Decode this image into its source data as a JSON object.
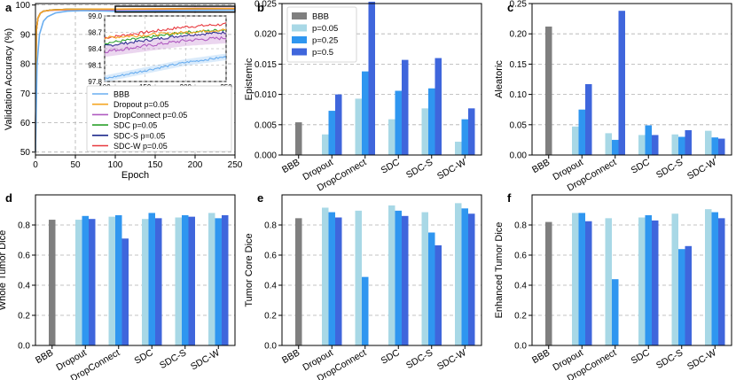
{
  "colors": {
    "BBB": "#7f7f7f",
    "p=0.05": "#a8d8e6",
    "p=0.25": "#2f96f0",
    "p=0.5": "#3f66dc",
    "line_BBB": "#6aaef0",
    "line_Dropout": "#f5a623",
    "line_DropConnect": "#b05bc0",
    "line_SDC": "#2ca02c",
    "line_SDC-S": "#1f2a8c",
    "line_SDC-W": "#e8383d"
  },
  "chart_data": [
    {
      "id": "a",
      "panel_letter": "a",
      "type": "line",
      "title": "",
      "xlabel": "Epoch",
      "ylabel": "Validation Accuracy (%)",
      "xlim": [
        0,
        250
      ],
      "ylim": [
        49,
        100.5
      ],
      "xticks": [
        "0",
        "50",
        "100",
        "150",
        "200",
        "250"
      ],
      "yticks": [
        "50",
        "60",
        "70",
        "80",
        "90",
        "100"
      ],
      "legend": [
        "BBB",
        "Dropout p=0.05",
        "DropConnect p=0.05",
        "SDC p=0.05",
        "SDC-S p=0.05",
        "SDC-W p=0.05"
      ],
      "legend_position": "lower-right",
      "series": [
        {
          "name": "BBB",
          "x": [
            0,
            2,
            5,
            10,
            15,
            25,
            40,
            60,
            100,
            150,
            200,
            250
          ],
          "y": [
            50,
            80,
            90,
            94.5,
            96,
            97.3,
            97.9,
            98.1,
            97.85,
            98.0,
            98.15,
            98.25
          ]
        },
        {
          "name": "Dropout p=0.05",
          "x": [
            0,
            1,
            3,
            6,
            10,
            20,
            40,
            100,
            150,
            200,
            250
          ],
          "y": [
            50,
            91,
            95.5,
            97.2,
            97.9,
            98.3,
            98.5,
            98.6,
            98.65,
            98.7,
            98.75
          ]
        },
        {
          "name": "DropConnect p=0.05",
          "x": [
            0,
            1,
            3,
            6,
            10,
            20,
            40,
            100,
            150,
            200,
            250
          ],
          "y": [
            50,
            91,
            95.5,
            97.2,
            97.9,
            98.2,
            98.35,
            98.35,
            98.45,
            98.55,
            98.6
          ]
        },
        {
          "name": "SDC p=0.05",
          "x": [
            0,
            1,
            3,
            6,
            10,
            20,
            40,
            100,
            150,
            200,
            250
          ],
          "y": [
            50,
            91,
            95.5,
            97.2,
            97.9,
            98.3,
            98.5,
            98.5,
            98.6,
            98.7,
            98.75
          ]
        },
        {
          "name": "SDC-S p=0.05",
          "x": [
            0,
            1,
            3,
            6,
            10,
            20,
            40,
            100,
            150,
            200,
            250
          ],
          "y": [
            50,
            91,
            95.5,
            97.2,
            97.9,
            98.3,
            98.5,
            98.45,
            98.55,
            98.65,
            98.7
          ]
        },
        {
          "name": "SDC-W p=0.05",
          "x": [
            0,
            1,
            3,
            6,
            10,
            20,
            40,
            100,
            150,
            200,
            250
          ],
          "y": [
            50,
            91,
            95.5,
            97.2,
            97.9,
            98.3,
            98.55,
            98.6,
            98.7,
            98.8,
            98.85
          ]
        }
      ],
      "inset": {
        "xlim": [
          100,
          250
        ],
        "ylim": [
          97.8,
          99.0
        ],
        "xticks": [
          "100",
          "150",
          "200",
          "250"
        ],
        "yticks": [
          "97.8",
          "98.1",
          "98.4",
          "98.7",
          "99.0"
        ],
        "highlight_x": [
          100,
          250
        ],
        "highlight_y": [
          97.8,
          99.0
        ]
      }
    },
    {
      "id": "b",
      "panel_letter": "b",
      "type": "bar",
      "ylabel": "Epistemic",
      "ylim": [
        0,
        0.025
      ],
      "yticks": [
        "0.000",
        "0.005",
        "0.010",
        "0.015",
        "0.020",
        "0.025"
      ],
      "tick_step": 0.005,
      "categories": [
        "BBB",
        "Dropout",
        "DropConnect",
        "SDC",
        "SDC-S",
        "SDC-W"
      ],
      "legend": [
        "BBB",
        "p=0.05",
        "p=0.25",
        "p=0.5"
      ],
      "legend_position": "upper-left",
      "series": [
        {
          "name": "BBB",
          "values": [
            0.0054,
            null,
            null,
            null,
            null,
            null
          ]
        },
        {
          "name": "p=0.05",
          "values": [
            null,
            0.0034,
            0.0093,
            0.0059,
            0.0077,
            0.0022
          ]
        },
        {
          "name": "p=0.25",
          "values": [
            null,
            0.0073,
            0.0138,
            0.0106,
            0.011,
            0.0059
          ]
        },
        {
          "name": "p=0.5",
          "values": [
            null,
            0.01,
            0.0253,
            0.0157,
            0.016,
            0.0077
          ]
        }
      ]
    },
    {
      "id": "c",
      "panel_letter": "c",
      "type": "bar",
      "ylabel": "Aleatoric",
      "ylim": [
        0,
        0.25
      ],
      "yticks": [
        "0.00",
        "0.05",
        "0.10",
        "0.15",
        "0.20",
        "0.25"
      ],
      "tick_step": 0.05,
      "categories": [
        "BBB",
        "Dropout",
        "DropConnect",
        "SDC",
        "SDC-S",
        "SDC-W"
      ],
      "series": [
        {
          "name": "BBB",
          "values": [
            0.212,
            null,
            null,
            null,
            null,
            null
          ]
        },
        {
          "name": "p=0.05",
          "values": [
            null,
            0.047,
            0.036,
            0.033,
            0.034,
            0.04
          ]
        },
        {
          "name": "p=0.25",
          "values": [
            null,
            0.075,
            0.025,
            0.049,
            0.03,
            0.029
          ]
        },
        {
          "name": "p=0.5",
          "values": [
            null,
            0.117,
            0.238,
            0.033,
            0.041,
            0.027
          ]
        }
      ]
    },
    {
      "id": "d",
      "panel_letter": "d",
      "type": "bar",
      "ylabel": "Whole Tumor Dice",
      "ylim": [
        0,
        1.0
      ],
      "yticks": [
        "0.0",
        "0.2",
        "0.4",
        "0.6",
        "0.8"
      ],
      "tick_step": 0.2,
      "categories": [
        "BBB",
        "Dropout",
        "DropConnect",
        "SDC",
        "SDC-S",
        "SDC-W"
      ],
      "series": [
        {
          "name": "BBB",
          "values": [
            0.835,
            null,
            null,
            null,
            null,
            null
          ]
        },
        {
          "name": "p=0.05",
          "values": [
            null,
            0.835,
            0.855,
            0.84,
            0.85,
            0.88
          ]
        },
        {
          "name": "p=0.25",
          "values": [
            null,
            0.86,
            0.865,
            0.88,
            0.865,
            0.845
          ]
        },
        {
          "name": "p=0.5",
          "values": [
            null,
            0.84,
            0.71,
            0.845,
            0.855,
            0.865
          ]
        }
      ]
    },
    {
      "id": "e",
      "panel_letter": "e",
      "type": "bar",
      "ylabel": "Tumor Core Dice",
      "ylim": [
        0,
        1.0
      ],
      "yticks": [
        "0.0",
        "0.2",
        "0.4",
        "0.6",
        "0.8"
      ],
      "tick_step": 0.2,
      "categories": [
        "BBB",
        "Dropout",
        "DropConnect",
        "SDC",
        "SDC-S",
        "SDC-W"
      ],
      "series": [
        {
          "name": "BBB",
          "values": [
            0.845,
            null,
            null,
            null,
            null,
            null
          ]
        },
        {
          "name": "p=0.05",
          "values": [
            null,
            0.915,
            0.895,
            0.93,
            0.885,
            0.945
          ]
        },
        {
          "name": "p=0.25",
          "values": [
            null,
            0.885,
            0.455,
            0.895,
            0.75,
            0.91
          ]
        },
        {
          "name": "p=0.5",
          "values": [
            null,
            0.85,
            null,
            0.86,
            0.665,
            0.875
          ]
        }
      ]
    },
    {
      "id": "f",
      "panel_letter": "f",
      "type": "bar",
      "ylabel": "Enhanced Tumor Dice",
      "ylim": [
        0,
        1.0
      ],
      "yticks": [
        "0.0",
        "0.2",
        "0.4",
        "0.6",
        "0.8"
      ],
      "tick_step": 0.2,
      "categories": [
        "BBB",
        "Dropout",
        "DropConnect",
        "SDC",
        "SDC-S",
        "SDC-W"
      ],
      "series": [
        {
          "name": "BBB",
          "values": [
            0.82,
            null,
            null,
            null,
            null,
            null
          ]
        },
        {
          "name": "p=0.05",
          "values": [
            null,
            0.88,
            0.845,
            0.85,
            0.875,
            0.905
          ]
        },
        {
          "name": "p=0.25",
          "values": [
            null,
            0.88,
            0.44,
            0.865,
            0.64,
            0.885
          ]
        },
        {
          "name": "p=0.5",
          "values": [
            null,
            0.825,
            null,
            0.83,
            0.66,
            0.845
          ]
        }
      ]
    }
  ]
}
